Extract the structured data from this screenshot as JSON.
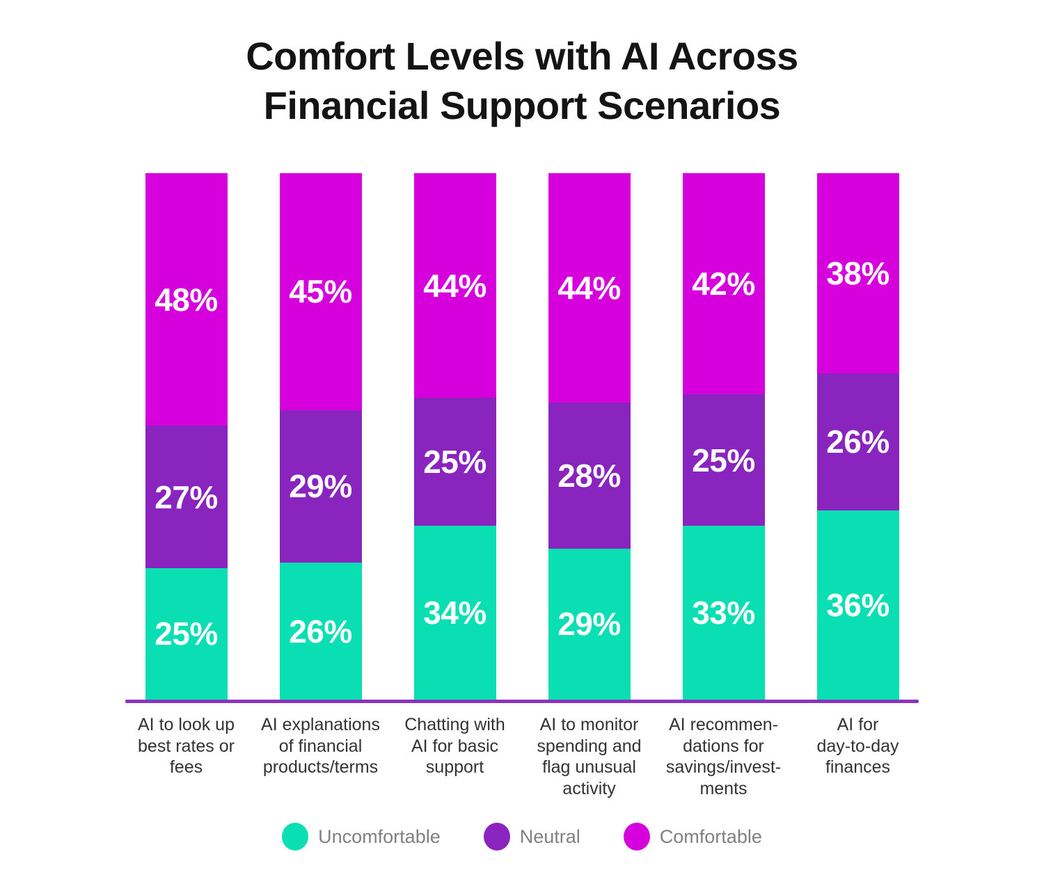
{
  "title": "Comfort Levels with AI Across Financial Support Scenarios",
  "title_lines": [
    "Comfort Levels with AI Across",
    "Financial Support Scenarios"
  ],
  "colors": {
    "uncomfortable": "#0ADFB4",
    "neutral": "#8A24BE",
    "comfortable": "#D500DB",
    "axis_line": "#8B35BF",
    "segment_value_text": "#FFFFFF",
    "title_text": "#141414",
    "category_text": "#333333",
    "legend_text": "#808080",
    "background": "#FFFFFF"
  },
  "legend": [
    {
      "label": "Uncomfortable",
      "color_key": "uncomfortable"
    },
    {
      "label": "Neutral",
      "color_key": "neutral"
    },
    {
      "label": "Comfortable",
      "color_key": "comfortable"
    }
  ],
  "chart_data": {
    "type": "bar",
    "stacked": true,
    "orientation": "vertical",
    "unit": "%",
    "title": "Comfort Levels with AI Across Financial Support Scenarios",
    "legend_position": "bottom",
    "grid": false,
    "value_labels": "percent shown in white inside each segment",
    "categories": [
      "AI to look up best rates or fees",
      "AI explanations of financial products/terms",
      "Chatting with AI for basic support",
      "AI to monitor spending and flag unusual activity",
      "AI recommendations for savings/investments",
      "AI for day-to-day finances"
    ],
    "categories_display": [
      [
        "AI to look up",
        "best rates or",
        "fees"
      ],
      [
        "AI explanations",
        "of financial",
        "products/terms"
      ],
      [
        "Chatting with",
        "AI for basic",
        "support"
      ],
      [
        "AI to monitor",
        "spending and",
        "flag unusual",
        "activity"
      ],
      [
        "AI recommen-",
        "dations for",
        "savings/invest-",
        "ments"
      ],
      [
        "AI for",
        "day-to-day",
        "finances"
      ]
    ],
    "series": [
      {
        "name": "Uncomfortable",
        "color_key": "uncomfortable",
        "values": [
          25,
          26,
          34,
          29,
          33,
          36
        ]
      },
      {
        "name": "Neutral",
        "color_key": "neutral",
        "values": [
          27,
          29,
          25,
          28,
          25,
          26
        ]
      },
      {
        "name": "Comfortable",
        "color_key": "comfortable",
        "values": [
          48,
          45,
          44,
          44,
          42,
          38
        ]
      }
    ],
    "segment_order_top_to_bottom": [
      "Comfortable",
      "Neutral",
      "Uncomfortable"
    ]
  }
}
